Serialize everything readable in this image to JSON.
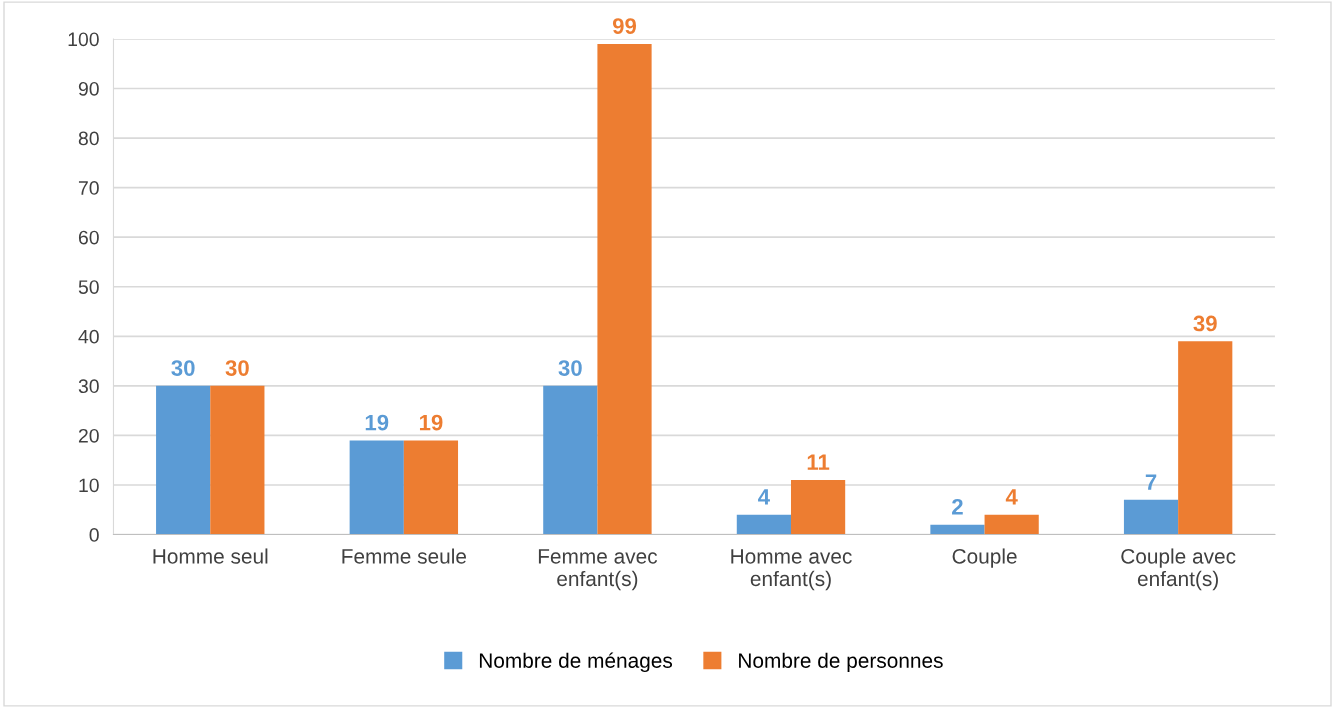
{
  "chart_data": {
    "type": "bar",
    "categories": [
      "Homme seul",
      "Femme seule",
      "Femme avec enfant(s)",
      "Homme avec enfant(s)",
      "Couple",
      "Couple avec enfant(s)"
    ],
    "series": [
      {
        "name": "Nombre de ménages",
        "color": "#5b9bd5",
        "values": [
          30,
          19,
          30,
          4,
          2,
          7
        ]
      },
      {
        "name": "Nombre de personnes",
        "color": "#ed7d31",
        "values": [
          30,
          19,
          99,
          11,
          4,
          39
        ]
      }
    ],
    "ylim": [
      0,
      100
    ],
    "yticks": [
      0,
      10,
      20,
      30,
      40,
      50,
      60,
      70,
      80,
      90,
      100
    ],
    "grid": "y",
    "legend": "bottom",
    "data_labels": true
  }
}
